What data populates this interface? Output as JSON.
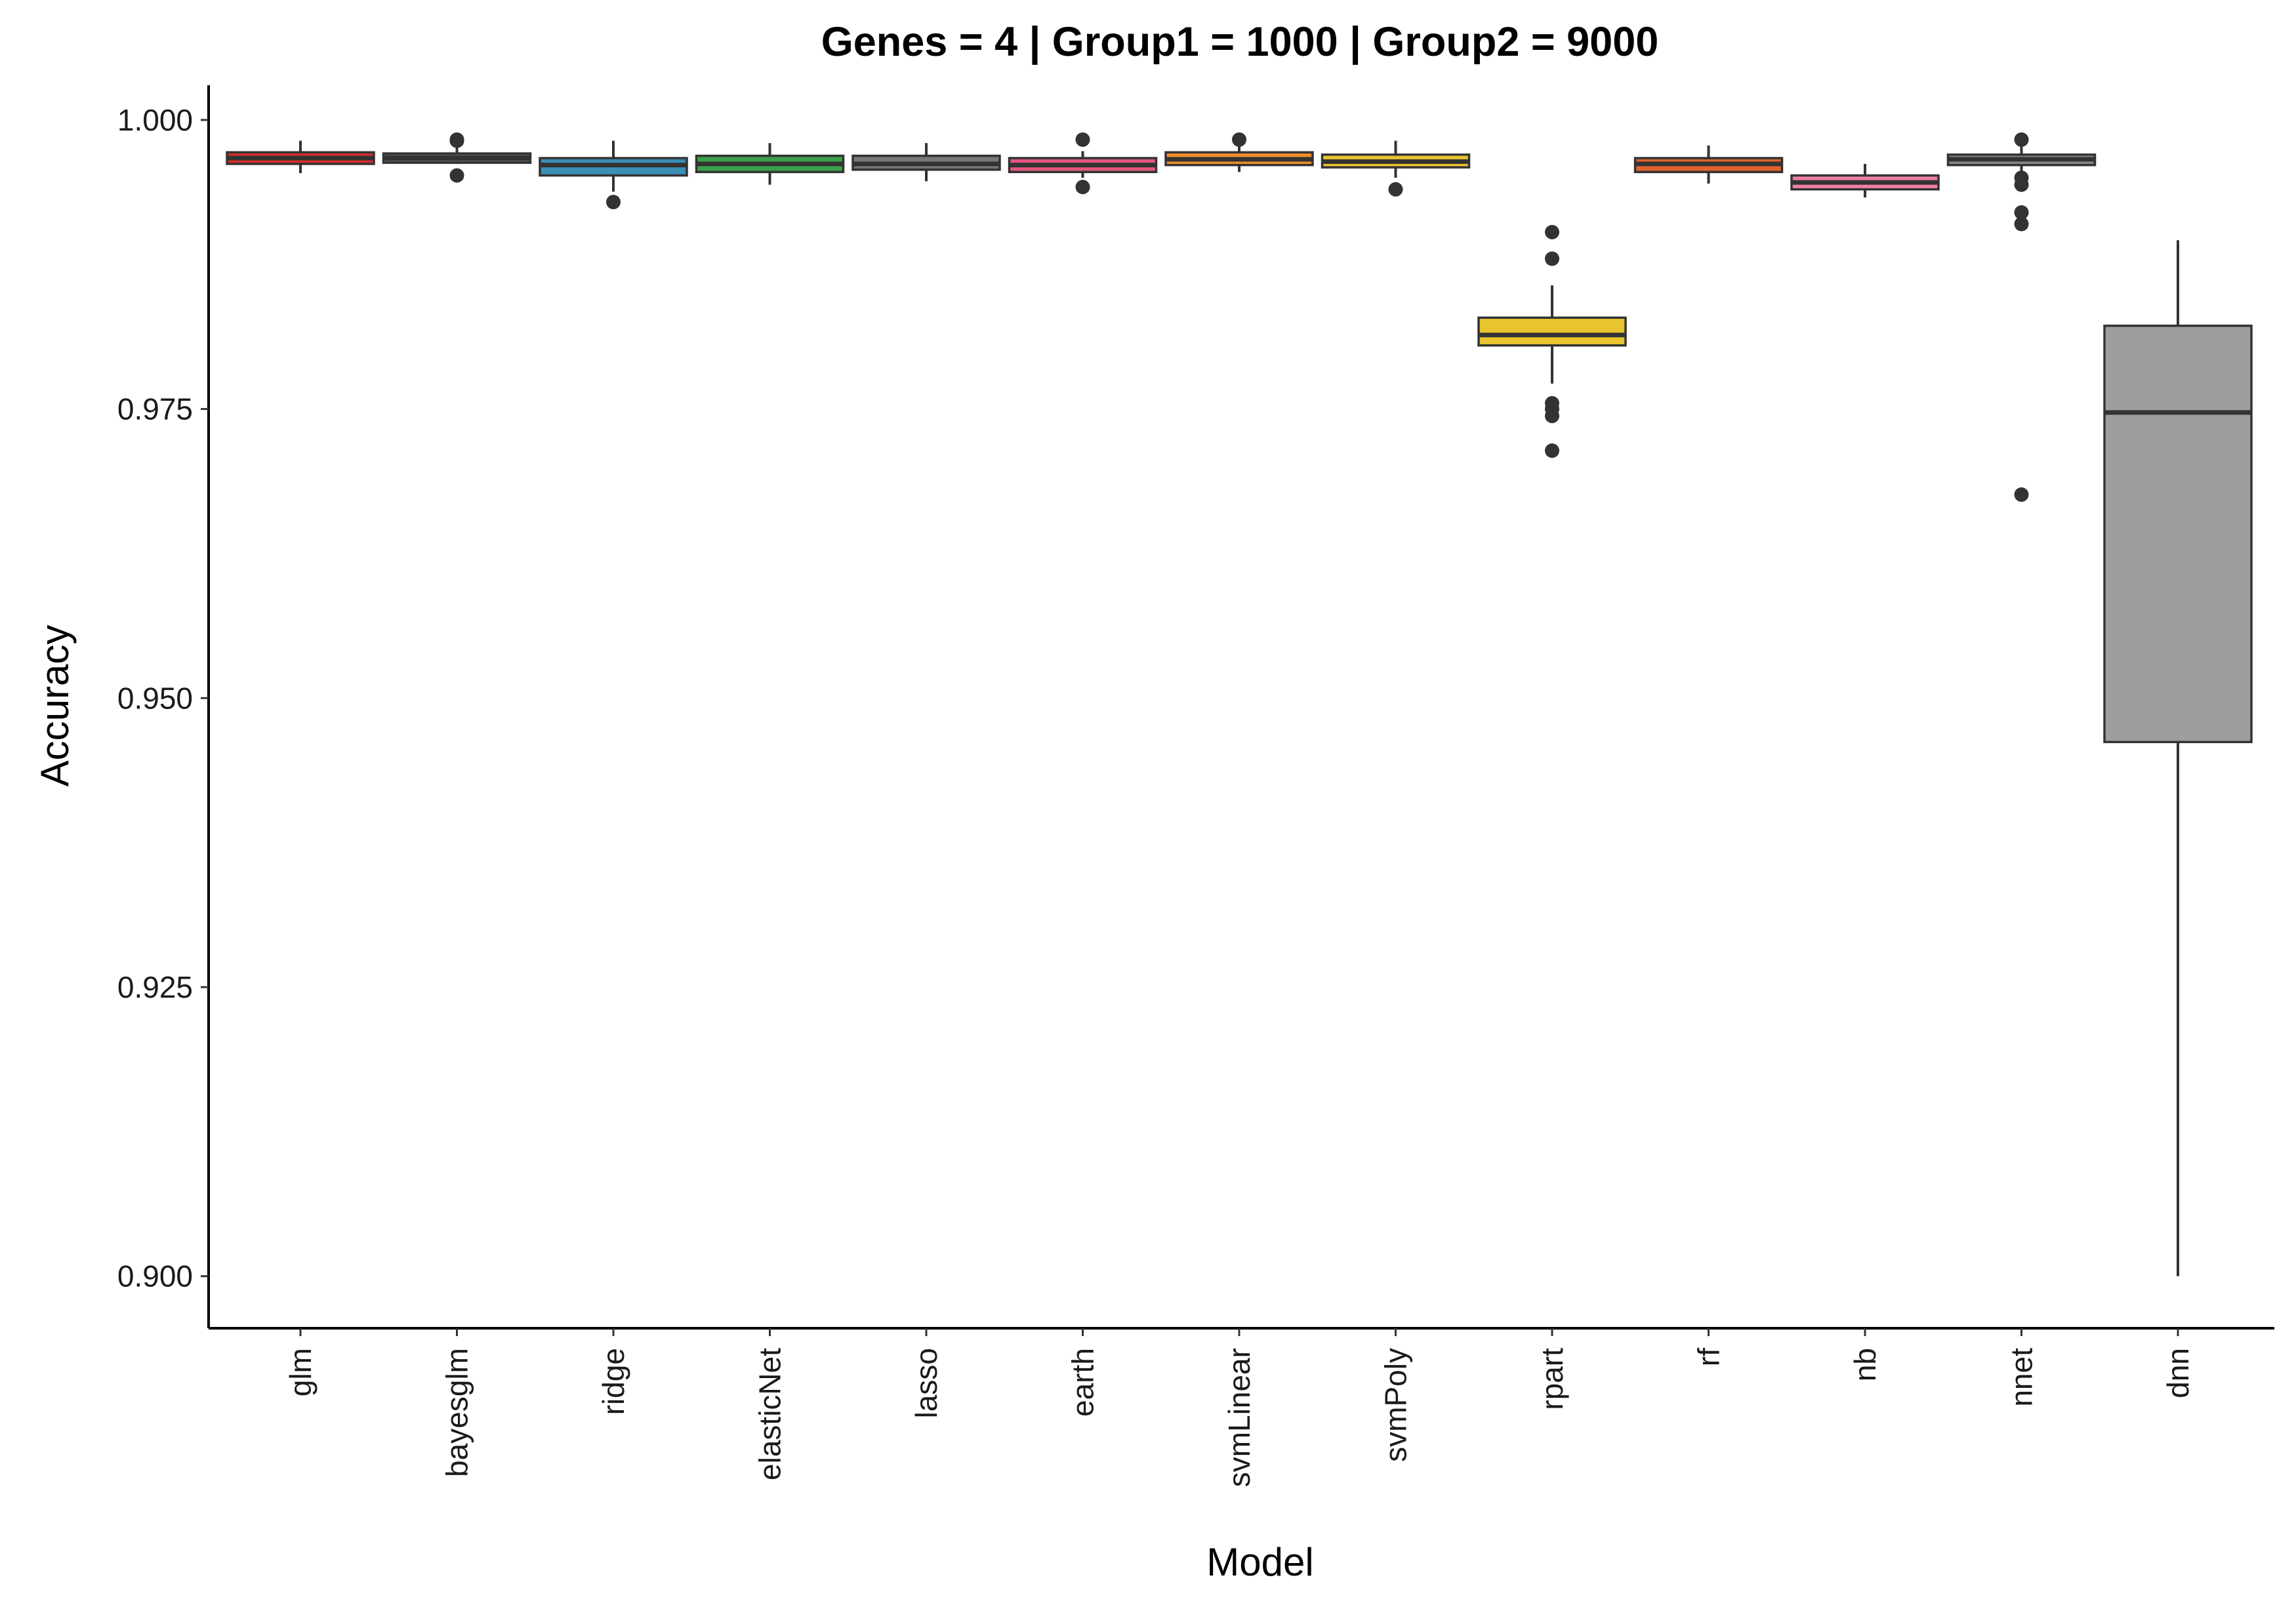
{
  "chart_data": {
    "type": "boxplot",
    "title": "Genes = 4 | Group1 = 1000 | Group2 = 9000",
    "xlabel": "Model",
    "ylabel": "Accuracy",
    "ylim": [
      0.8955,
      1.003
    ],
    "yticks": [
      "1.000",
      "0.975",
      "0.950",
      "0.925",
      "0.900"
    ],
    "ytick_values": [
      1.0,
      0.975,
      0.95,
      0.925,
      0.9
    ],
    "grid": false,
    "legend": "none",
    "categories": [
      "glm",
      "bayesglm",
      "ridge",
      "elasticNet",
      "lasso",
      "earth",
      "svmLinear",
      "svmPoly",
      "rpart",
      "rf",
      "nb",
      "nnet",
      "dnn"
    ],
    "boxes": [
      {
        "model": "glm",
        "min": 0.9954,
        "q1": 0.9962,
        "median": 0.9967,
        "q3": 0.9972,
        "max": 0.9982,
        "outliers": [],
        "color": "#d62c2c"
      },
      {
        "model": "bayesglm",
        "min": 0.9962,
        "q1": 0.9963,
        "median": 0.9967,
        "q3": 0.9971,
        "max": 0.9977,
        "outliers": [
          0.9952,
          0.9982,
          0.9983
        ],
        "color": "#555555"
      },
      {
        "model": "ridge",
        "min": 0.9938,
        "q1": 0.9952,
        "median": 0.9961,
        "q3": 0.9967,
        "max": 0.9982,
        "outliers": [
          0.9929
        ],
        "color": "#3a8fb7"
      },
      {
        "model": "elasticNet",
        "min": 0.9944,
        "q1": 0.9955,
        "median": 0.9962,
        "q3": 0.9969,
        "max": 0.998,
        "outliers": [],
        "color": "#3aa04a"
      },
      {
        "model": "lasso",
        "min": 0.9947,
        "q1": 0.9957,
        "median": 0.9962,
        "q3": 0.9969,
        "max": 0.998,
        "outliers": [],
        "color": "#777777"
      },
      {
        "model": "earth",
        "min": 0.995,
        "q1": 0.9955,
        "median": 0.9961,
        "q3": 0.9967,
        "max": 0.9973,
        "outliers": [
          0.9942,
          0.9983
        ],
        "color": "#e6557f"
      },
      {
        "model": "svmLinear",
        "min": 0.9955,
        "q1": 0.9961,
        "median": 0.9966,
        "q3": 0.9972,
        "max": 0.9977,
        "outliers": [
          0.9983
        ],
        "color": "#f08c28"
      },
      {
        "model": "svmPoly",
        "min": 0.995,
        "q1": 0.9959,
        "median": 0.9964,
        "q3": 0.997,
        "max": 0.9982,
        "outliers": [
          0.994
        ],
        "color": "#e8c42e"
      },
      {
        "model": "rpart",
        "min": 0.9772,
        "q1": 0.9805,
        "median": 0.9814,
        "q3": 0.9829,
        "max": 0.9857,
        "outliers": [
          0.9903,
          0.988,
          0.9755,
          0.975,
          0.9744,
          0.9714
        ],
        "color": "#e8c42e"
      },
      {
        "model": "rf",
        "min": 0.9945,
        "q1": 0.9955,
        "median": 0.9962,
        "q3": 0.9967,
        "max": 0.9978,
        "outliers": [],
        "color": "#e0632e"
      },
      {
        "model": "nb",
        "min": 0.9933,
        "q1": 0.994,
        "median": 0.9946,
        "q3": 0.9952,
        "max": 0.9962,
        "outliers": [],
        "color": "#ee7fa8"
      },
      {
        "model": "nnet",
        "min": 0.995,
        "q1": 0.9961,
        "median": 0.9966,
        "q3": 0.997,
        "max": 0.9977,
        "outliers": [
          0.9983,
          0.995,
          0.9944,
          0.992,
          0.991,
          0.9676
        ],
        "color": "#888888"
      },
      {
        "model": "dnn",
        "min": 0.9,
        "q1": 0.9462,
        "median": 0.9747,
        "q3": 0.9822,
        "max": 0.9896,
        "outliers": [],
        "color": "#9e9e9e"
      }
    ]
  }
}
